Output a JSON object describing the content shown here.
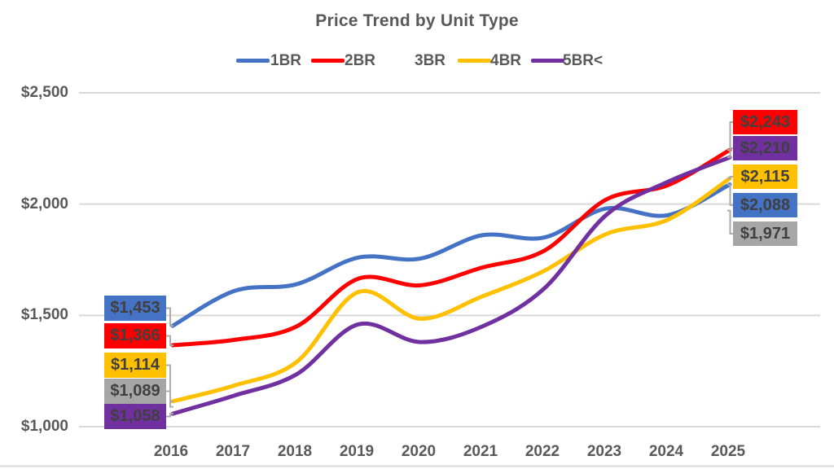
{
  "title": "Price Trend by Unit Type",
  "colors": {
    "series_1br": "#4472C4",
    "series_2br": "#FF0000",
    "series_3br": "#A6A6A6",
    "series_4br": "#FFC000",
    "series_5br": "#7030A0",
    "title_text": "#595959",
    "label_text": "#404040",
    "axis_text": "#595959",
    "gridline": "#D9D9D9",
    "leader_line": "#ACACAC",
    "background": "#FFFFFF"
  },
  "legend": {
    "position": "top",
    "items": [
      {
        "label": "1BR",
        "color": "#4472C4",
        "line_visible": true
      },
      {
        "label": "2BR",
        "color": "#FF0000",
        "line_visible": true
      },
      {
        "label": "3BR",
        "color": "#A6A6A6",
        "line_visible": false
      },
      {
        "label": "4BR",
        "color": "#FFC000",
        "line_visible": true
      },
      {
        "label": "5BR<",
        "color": "#7030A0",
        "line_visible": true
      }
    ]
  },
  "y_axis": {
    "tick_labels": [
      "$2,500",
      "$2,000",
      "$1,500",
      "$1,000"
    ],
    "tick_values": [
      2500,
      2000,
      1500,
      1000
    ]
  },
  "x_axis": {
    "tick_labels": [
      "2016",
      "2017",
      "2018",
      "2019",
      "2020",
      "2021",
      "2022",
      "2023",
      "2024",
      "2025"
    ]
  },
  "chart_data": {
    "type": "line",
    "smoothed": true,
    "title": "Price Trend by Unit Type",
    "x": [
      2016,
      2017,
      2018,
      2019,
      2020,
      2021,
      2022,
      2023,
      2024,
      2025
    ],
    "ylim": [
      1000,
      2500
    ],
    "grid": true,
    "legend_position": "top",
    "series": [
      {
        "name": "1BR",
        "color": "#4472C4",
        "line_hidden": false,
        "values": [
          1453,
          1610,
          1640,
          1760,
          1755,
          1860,
          1850,
          1980,
          1950,
          2088
        ]
      },
      {
        "name": "2BR",
        "color": "#FF0000",
        "line_hidden": false,
        "values": [
          1366,
          1390,
          1450,
          1665,
          1635,
          1715,
          1790,
          2020,
          2085,
          2243
        ]
      },
      {
        "name": "3BR",
        "color": "#A6A6A6",
        "line_hidden": true,
        "values": [
          1089,
          null,
          null,
          null,
          null,
          null,
          null,
          null,
          null,
          1971
        ]
      },
      {
        "name": "4BR",
        "color": "#FFC000",
        "line_hidden": false,
        "values": [
          1114,
          1185,
          1290,
          1605,
          1485,
          1585,
          1700,
          1865,
          1930,
          2115
        ]
      },
      {
        "name": "5BR<",
        "color": "#7030A0",
        "line_hidden": false,
        "values": [
          1058,
          1140,
          1235,
          1460,
          1380,
          1450,
          1620,
          1950,
          2100,
          2210
        ]
      }
    ]
  },
  "value_labels": {
    "left": [
      {
        "text": "$1,453",
        "series": "1BR",
        "value": 1453,
        "color": "#4472C4"
      },
      {
        "text": "$1,366",
        "series": "2BR",
        "value": 1366,
        "color": "#FF0000"
      },
      {
        "text": "$1,114",
        "series": "4BR",
        "value": 1114,
        "color": "#FFC000"
      },
      {
        "text": "$1,089",
        "series": "3BR",
        "value": 1089,
        "color": "#A6A6A6"
      },
      {
        "text": "$1,058",
        "series": "5BR<",
        "value": 1058,
        "color": "#7030A0"
      }
    ],
    "right": [
      {
        "text": "$2,243",
        "series": "2BR",
        "value": 2243,
        "color": "#FF0000"
      },
      {
        "text": "$2,210",
        "series": "5BR<",
        "value": 2210,
        "color": "#7030A0"
      },
      {
        "text": "$2,115",
        "series": "4BR",
        "value": 2115,
        "color": "#FFC000"
      },
      {
        "text": "$2,088",
        "series": "1BR",
        "value": 2088,
        "color": "#4472C4"
      },
      {
        "text": "$1,971",
        "series": "3BR",
        "value": 1971,
        "color": "#A6A6A6"
      }
    ]
  }
}
